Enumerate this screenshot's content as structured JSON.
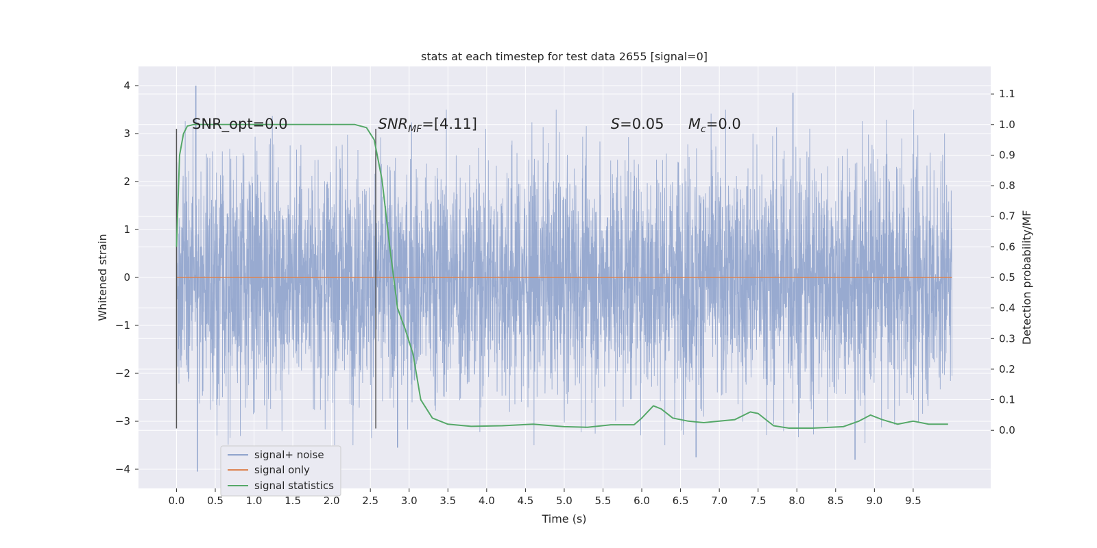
{
  "chart_data": {
    "type": "line",
    "title": "stats at each timestep for test data 2655 [signal=0]",
    "xlabel": "Time (s)",
    "ylabel": "Whitened strain",
    "y2label": "Detection probability/MF",
    "xlim": [
      -0.49,
      10.5
    ],
    "ylim": [
      -4.4,
      4.4
    ],
    "y2lim": [
      -0.19,
      1.19
    ],
    "x_ticks": [
      "0.0",
      "0.5",
      "1.0",
      "1.5",
      "2.0",
      "2.5",
      "3.0",
      "3.5",
      "4.0",
      "4.5",
      "5.0",
      "5.5",
      "6.0",
      "6.5",
      "7.0",
      "7.5",
      "8.0",
      "8.5",
      "9.0",
      "9.5"
    ],
    "y_ticks": [
      "4",
      "3",
      "2",
      "1",
      "0",
      "−1",
      "−2",
      "−3",
      "−4"
    ],
    "y2_ticks": [
      "1.1",
      "1.0",
      "0.9",
      "0.8",
      "0.7",
      "0.6",
      "0.5",
      "0.4",
      "0.3",
      "0.2",
      "0.1",
      "0.0"
    ],
    "grid": true,
    "legend_position": "bottom-left",
    "legend": [
      "signal+ noise",
      "signal only",
      "signal statistics"
    ],
    "colors": {
      "noise": "#8fa3cc",
      "signal": "#dd8452",
      "stats": "#55a868",
      "background": "#eaeaf2",
      "grid": "#ffffff",
      "vline": "#555555"
    },
    "noise_series": {
      "x_range_s": [
        0.0,
        10.0
      ],
      "amplitude_core": 1.3,
      "peaks": [
        {
          "t": 0.25,
          "value": 4.0
        },
        {
          "t": 0.27,
          "value": -4.05
        },
        {
          "t": 7.95,
          "value": 3.85
        },
        {
          "t": 8.75,
          "value": -3.8
        },
        {
          "t": 6.7,
          "value": -3.75
        },
        {
          "t": 2.85,
          "value": -3.55
        }
      ]
    },
    "signal_only": {
      "x": [
        0.0,
        10.0
      ],
      "y": [
        0.0,
        0.0
      ]
    },
    "series": [
      {
        "name": "signal statistics",
        "axis": "right",
        "x": [
          0.0,
          0.04,
          0.09,
          0.14,
          0.22,
          0.35,
          1.0,
          2.0,
          2.3,
          2.45,
          2.55,
          2.65,
          2.75,
          2.85,
          2.95,
          3.05,
          3.15,
          3.3,
          3.5,
          3.8,
          4.2,
          4.6,
          5.0,
          5.3,
          5.6,
          5.9,
          6.0,
          6.15,
          6.25,
          6.4,
          6.6,
          6.8,
          7.0,
          7.2,
          7.4,
          7.5,
          7.7,
          7.9,
          8.2,
          8.6,
          8.8,
          8.95,
          9.1,
          9.3,
          9.5,
          9.7,
          9.95
        ],
        "y": [
          0.6,
          0.9,
          0.97,
          0.995,
          1.0,
          1.0,
          1.0,
          1.0,
          1.0,
          0.99,
          0.95,
          0.82,
          0.6,
          0.4,
          0.33,
          0.25,
          0.1,
          0.04,
          0.02,
          0.013,
          0.015,
          0.02,
          0.012,
          0.01,
          0.018,
          0.018,
          0.04,
          0.08,
          0.07,
          0.04,
          0.03,
          0.025,
          0.03,
          0.035,
          0.06,
          0.055,
          0.015,
          0.007,
          0.007,
          0.012,
          0.03,
          0.05,
          0.035,
          0.02,
          0.03,
          0.02,
          0.02
        ]
      }
    ],
    "vlines_s": [
      0.0,
      2.57
    ],
    "annotations": [
      {
        "text": "SNR_opt=0.0",
        "x": 0.2,
        "y": 3.1
      },
      {
        "main": "SNR",
        "sub": "MF",
        "rest": "=[4.11]",
        "x": 2.6,
        "y": 3.1
      },
      {
        "main": "S",
        "rest": "=0.05",
        "x": 5.6,
        "y": 3.1
      },
      {
        "main": "M",
        "sub": "c",
        "rest": "=0.0",
        "x": 6.6,
        "y": 3.1
      }
    ]
  }
}
